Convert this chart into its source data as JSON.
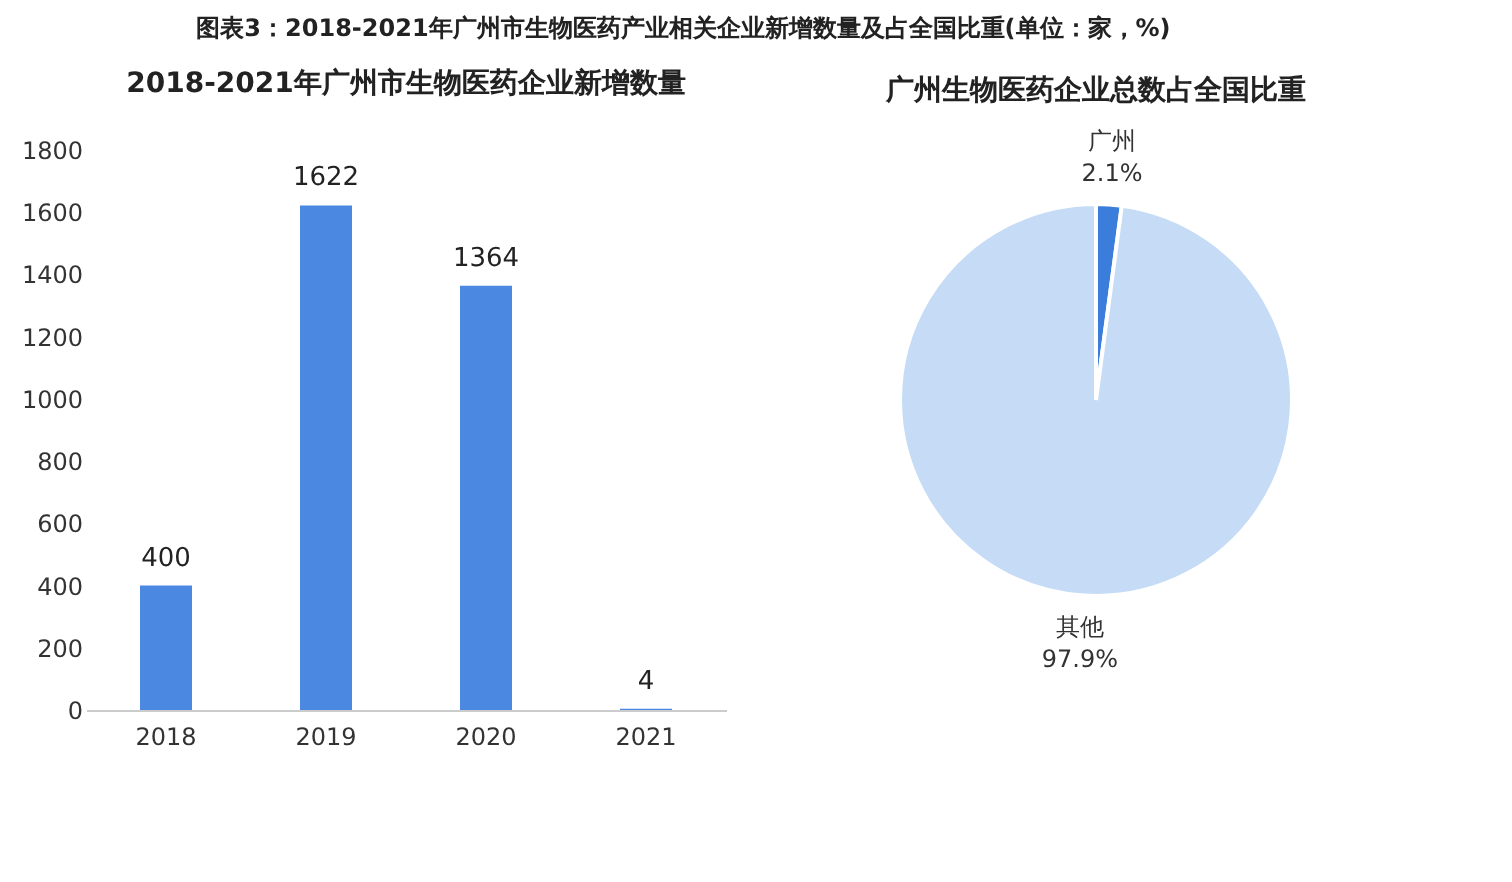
{
  "chart_data": [
    {
      "type": "bar",
      "title": "2018-2021年广州市生物医药企业新增数量",
      "annotations": [
        "图表3：2018-2021年广州市生物医药产业相关企业新增数量及占全国比重(单位：家，%)"
      ],
      "categories": [
        "2018",
        "2019",
        "2020",
        "2021"
      ],
      "values": [
        400,
        1622,
        1364,
        4
      ],
      "color": "#4a88e2",
      "ylim": [
        0,
        1800
      ],
      "yticks": [
        0,
        200,
        400,
        600,
        800,
        1000,
        1200,
        1400,
        1600,
        1800
      ],
      "grid": false,
      "data_labels": true
    },
    {
      "type": "pie",
      "title": "广州生物医药企业总数占全国比重",
      "categories": [
        "广州",
        "其他"
      ],
      "values": [
        2.1,
        97.9
      ],
      "colors": [
        "#3b7ddb",
        "#c6dcf6"
      ],
      "value_labels": [
        "2.1%",
        "97.9%"
      ]
    }
  ]
}
